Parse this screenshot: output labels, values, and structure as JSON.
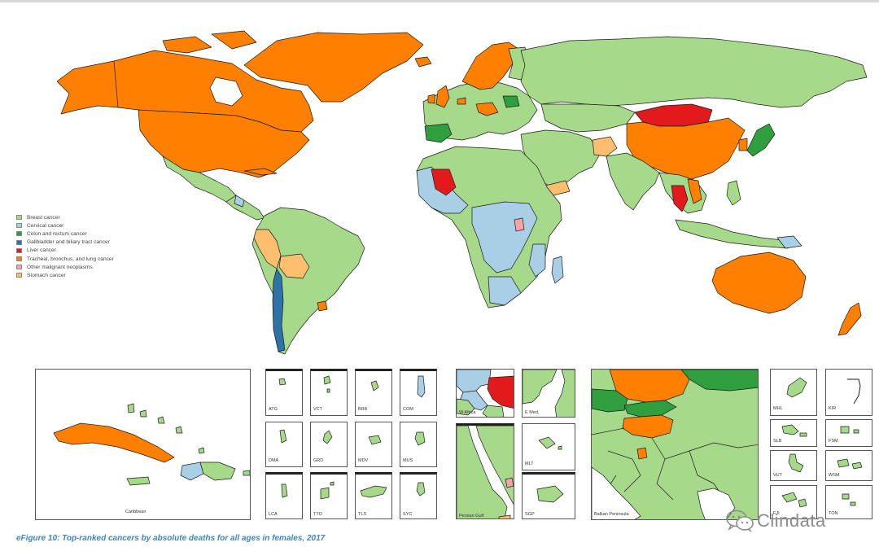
{
  "legend": [
    {
      "label": "Breast cancer",
      "color": "#a6d98a"
    },
    {
      "label": "Cervical cancer",
      "color": "#a9cfe6"
    },
    {
      "label": "Colon and rectum cancer",
      "color": "#2f9e3f"
    },
    {
      "label": "Gallbladder and biliary tract cancer",
      "color": "#2f72a8"
    },
    {
      "label": "Liver cancer",
      "color": "#e31a1c"
    },
    {
      "label": "Tracheal, bronchus, and lung cancer",
      "color": "#ff7f00"
    },
    {
      "label": "Other malignant neoplasms",
      "color": "#f4a3a8"
    },
    {
      "label": "Stomach cancer",
      "color": "#fdbf6f"
    }
  ],
  "insets": {
    "caribbean": "Caribbean",
    "small_islands": [
      "ATG",
      "VCT",
      "BRB",
      "COM",
      "DMA",
      "GRD",
      "MDV",
      "MUS",
      "LCA",
      "TTO",
      "TLS",
      "SYC"
    ],
    "w_africa": "W Africa",
    "e_med": "E Med.",
    "persian_gulf": "Persian Gulf",
    "mlt": "MLT",
    "sgp": "SGP",
    "balkan": "Balkan Peninsula",
    "pacific": [
      "MHL",
      "KIR",
      "SLB",
      "FSM",
      "VUT",
      "WSM",
      "FJI",
      "TON"
    ]
  },
  "caption": "eFigure 10: Top-ranked cancers by absolute deaths for all ages in females, 2017",
  "watermark": {
    "text": "Clindata",
    "icon": "wechat-icon"
  }
}
